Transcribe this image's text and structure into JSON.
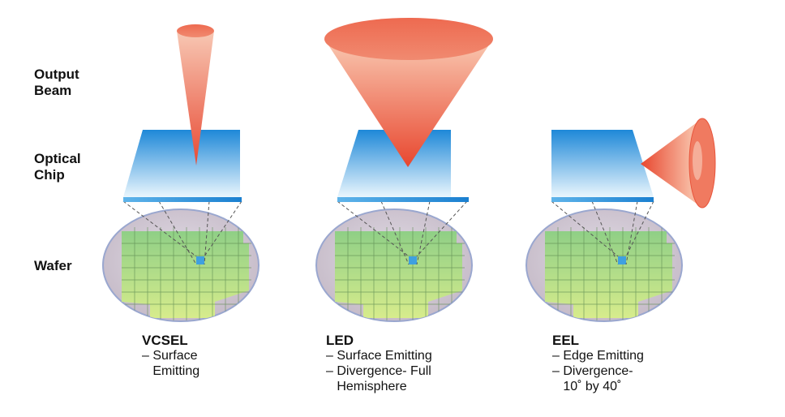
{
  "row_labels": {
    "output_beam": "Output\nBeam",
    "optical_chip": "Optical\nChip",
    "wafer": "Wafer"
  },
  "devices": [
    {
      "title": "VCSEL",
      "lines": [
        "– Surface",
        "   Emitting"
      ]
    },
    {
      "title": "LED",
      "lines": [
        "– Surface Emitting",
        "– Divergence- Full",
        "   Hemisphere"
      ]
    },
    {
      "title": "EEL",
      "lines": [
        "– Edge Emitting",
        "– Divergence-",
        "   10˚ by 40˚"
      ]
    }
  ],
  "colors": {
    "beam_light": "#f6c2ad",
    "beam_dark": "#ef6a4e",
    "chip_top": "#1e88d8",
    "chip_bottom": "#e8f4fc",
    "wafer_edge": "#9aa7cf",
    "wafer_fill": "#cfc8d6",
    "grid_fill": "#a8d58a",
    "die_highlight": "#3fa0e0"
  }
}
